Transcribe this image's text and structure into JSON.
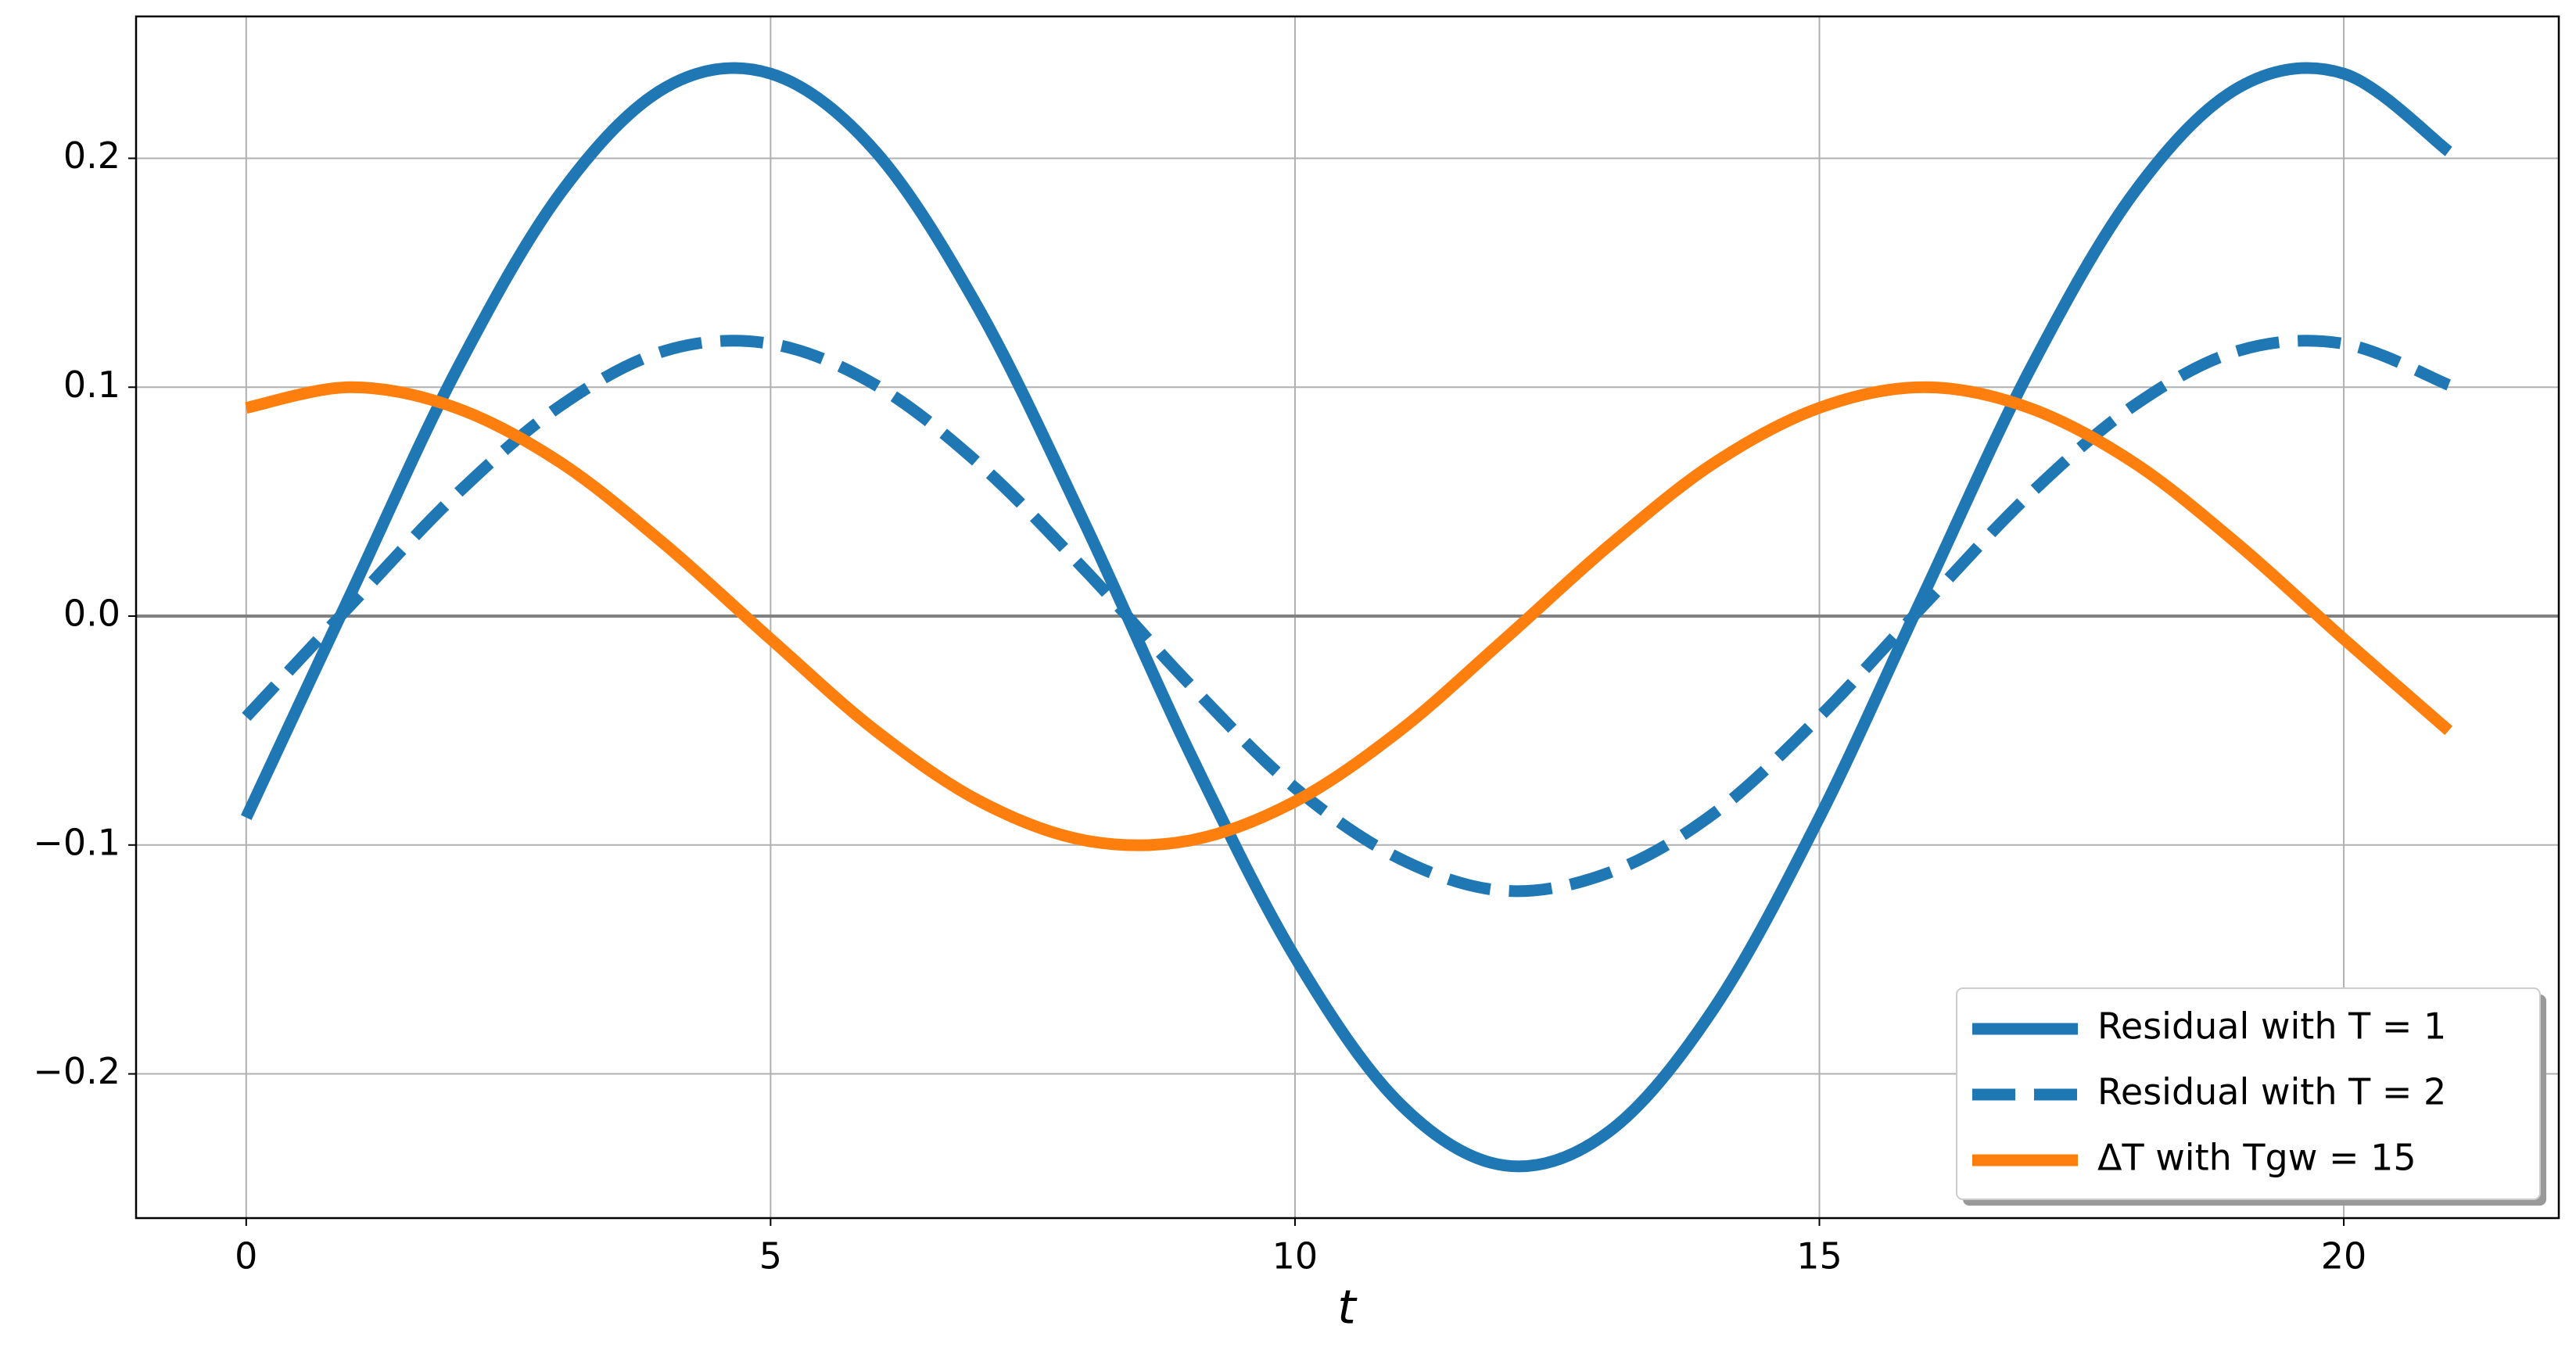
{
  "chart_data": {
    "type": "line",
    "xlabel": "t",
    "x": [
      0,
      1,
      2,
      3,
      4,
      5,
      6,
      7,
      8,
      9,
      10,
      11,
      12,
      13,
      14,
      15,
      16,
      17,
      18,
      19,
      20,
      21
    ],
    "series": [
      {
        "name": "Residual with T = 1",
        "color": "#1f77b4",
        "dash": false,
        "values": [
          -0.088,
          0.01,
          0.107,
          0.185,
          0.231,
          0.237,
          0.203,
          0.133,
          0.04,
          -0.06,
          -0.149,
          -0.213,
          -0.24,
          -0.225,
          -0.171,
          -0.088,
          0.01,
          0.107,
          0.185,
          0.231,
          0.237,
          0.203
        ]
      },
      {
        "name": "Residual with T = 2",
        "color": "#1f77b4",
        "dash": true,
        "values": [
          -0.044,
          0.005,
          0.053,
          0.092,
          0.116,
          0.119,
          0.101,
          0.066,
          0.02,
          -0.03,
          -0.075,
          -0.106,
          -0.12,
          -0.112,
          -0.086,
          -0.044,
          0.005,
          0.053,
          0.092,
          0.116,
          0.119,
          0.101
        ]
      },
      {
        "name": "ΔT with Tgw = 15",
        "color": "#ff7f0e",
        "dash": false,
        "values": [
          0.091,
          0.1,
          0.091,
          0.067,
          0.031,
          -0.01,
          -0.05,
          -0.081,
          -0.098,
          -0.098,
          -0.081,
          -0.05,
          -0.01,
          0.031,
          0.067,
          0.091,
          0.1,
          0.091,
          0.067,
          0.031,
          -0.01,
          -0.05
        ]
      }
    ],
    "xlim": [
      -1.05,
      22.05
    ],
    "ylim": [
      -0.263,
      0.262
    ],
    "xticks": [
      0,
      5,
      10,
      15,
      20
    ],
    "yticks": [
      {
        "value": -0.2,
        "label": "−0.2"
      },
      {
        "value": -0.1,
        "label": "−0.1"
      },
      {
        "value": 0,
        "label": "0.0"
      },
      {
        "value": 0.1,
        "label": "0.1"
      },
      {
        "value": 0.2,
        "label": "0.2"
      }
    ],
    "grid": true,
    "axhline": 0,
    "legend": "lower right"
  }
}
